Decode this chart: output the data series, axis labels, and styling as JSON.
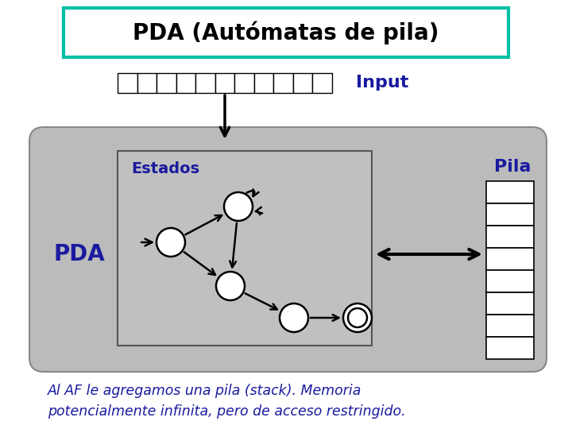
{
  "title": "PDA (Autómatas de pila)",
  "title_color": "#000000",
  "title_border_color": "#00BFA5",
  "bg_color": "#FFFFFF",
  "big_box_color": "#BBBBBB",
  "estados_box_color": "#C8C8C8",
  "input_label": "Input",
  "estados_label": "Estados",
  "pda_label": "PDA",
  "pila_label": "Pila",
  "label_color": "#1A1AA0",
  "bottom_text_line1": "Al AF le agregamos una pila (stack). Memoria",
  "bottom_text_line2": "potencialmente infinita, pero de acceso restringido.",
  "bottom_text_color": "#1A1AA0"
}
